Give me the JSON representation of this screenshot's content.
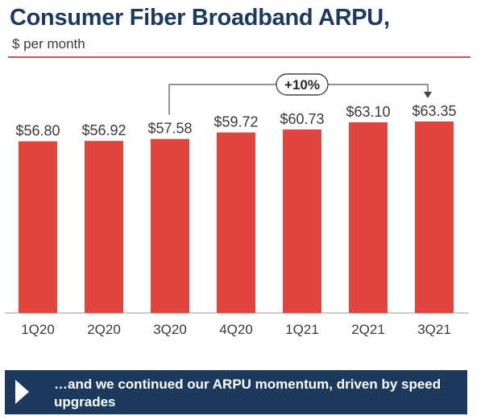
{
  "header": {
    "title": "Consumer Fiber Broadband ARPU,",
    "subtitle": "$ per month"
  },
  "chart_data": {
    "type": "bar",
    "title": "Consumer Fiber Broadband ARPU,",
    "subtitle": "$ per month",
    "categories": [
      "1Q20",
      "2Q20",
      "3Q20",
      "4Q20",
      "1Q21",
      "2Q21",
      "3Q21"
    ],
    "values": [
      56.8,
      56.92,
      57.58,
      59.72,
      60.73,
      63.1,
      63.35
    ],
    "data_labels": [
      "$56.80",
      "$56.92",
      "$57.58",
      "$59.72",
      "$60.73",
      "$63.10",
      "$63.35"
    ],
    "xlabel": "",
    "ylabel": "",
    "ylim": [
      0,
      63.35
    ],
    "grid": false,
    "legend": "none",
    "bar_color": "#e0463f",
    "annotation": {
      "label": "+10%",
      "from_category": "3Q20",
      "to_category": "3Q21"
    }
  },
  "banner": {
    "text": "…and we continued our ARPU momentum, driven by speed upgrades",
    "icon": "play-arrow-icon"
  },
  "colors": {
    "title": "#1b3a5e",
    "bar": "#e0463f",
    "rule": "#d94b44",
    "banner_bg": "#1b3a5e",
    "banner_text": "#ffffff"
  }
}
